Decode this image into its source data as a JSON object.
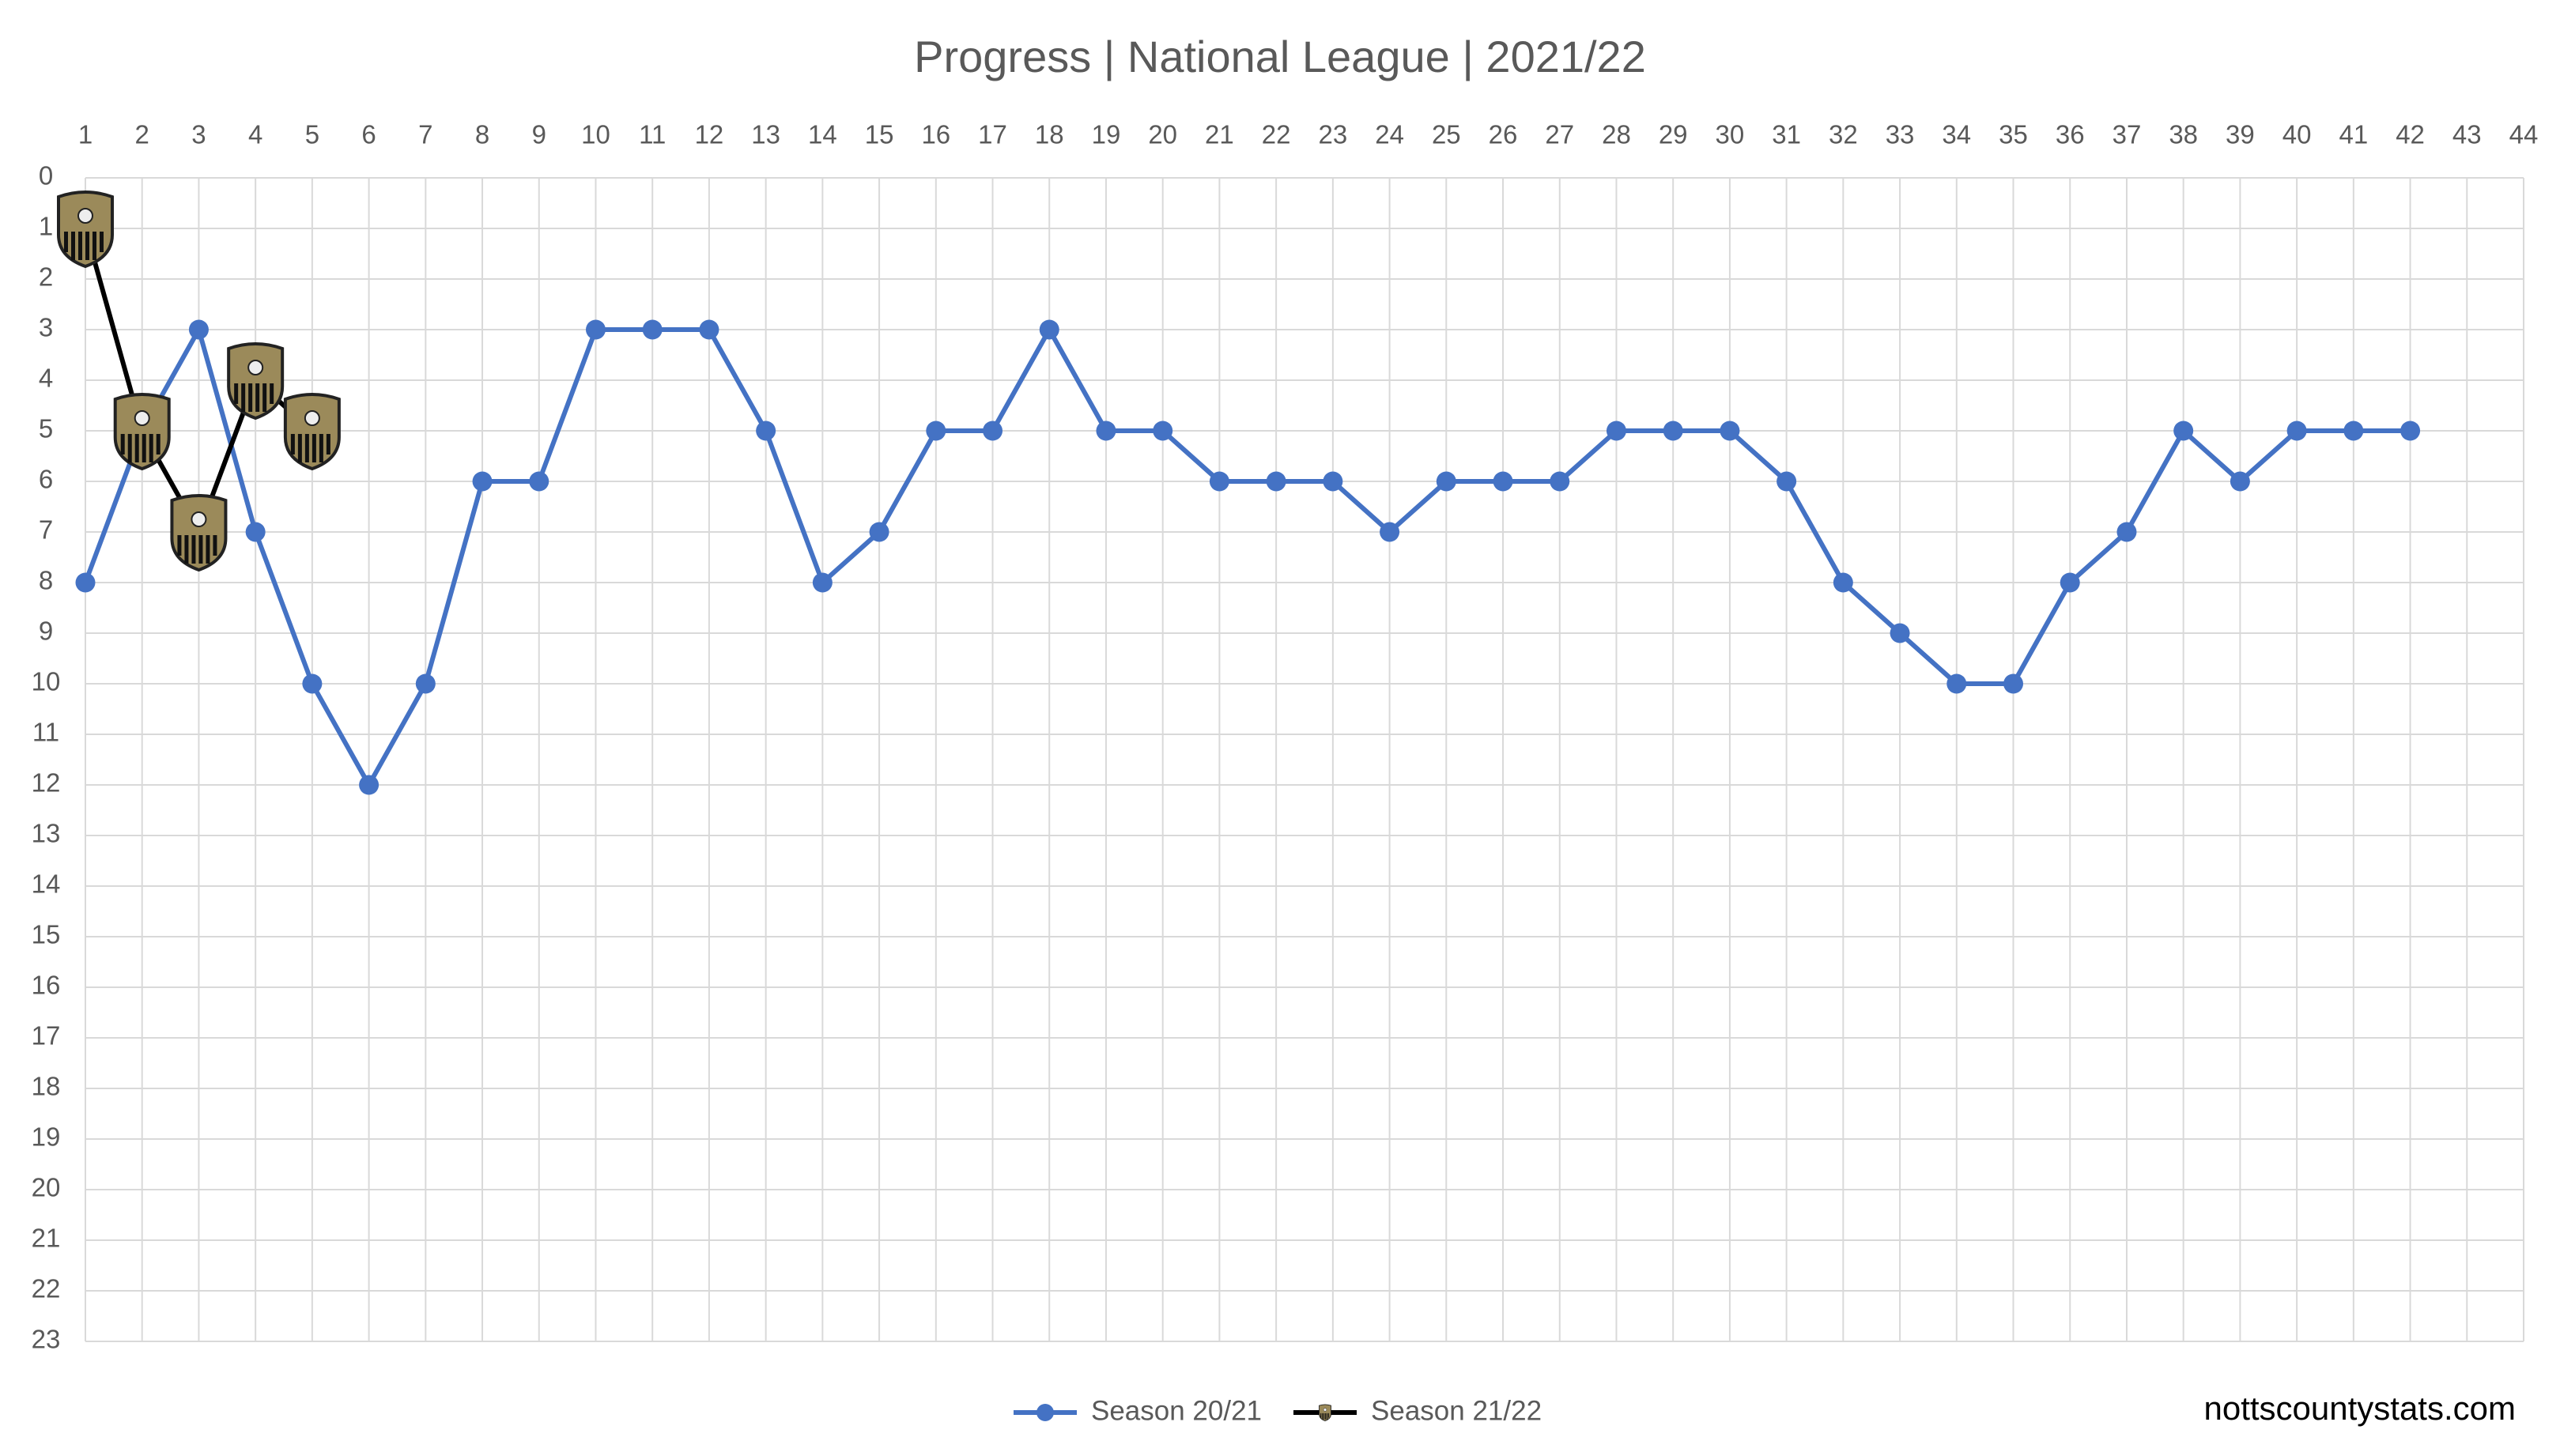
{
  "chart_data": {
    "type": "line",
    "title": "Progress | National League | 2021/22",
    "x": [
      1,
      2,
      3,
      4,
      5,
      6,
      7,
      8,
      9,
      10,
      11,
      12,
      13,
      14,
      15,
      16,
      17,
      18,
      19,
      20,
      21,
      22,
      23,
      24,
      25,
      26,
      27,
      28,
      29,
      30,
      31,
      32,
      33,
      34,
      35,
      36,
      37,
      38,
      39,
      40,
      41,
      42
    ],
    "series": [
      {
        "name": "Season 20/21",
        "color": "#4472c4",
        "marker": "circle",
        "values": [
          8,
          5,
          3,
          7,
          10,
          12,
          10,
          6,
          6,
          3,
          3,
          3,
          5,
          8,
          7,
          5,
          5,
          3,
          5,
          5,
          6,
          6,
          6,
          7,
          6,
          6,
          6,
          5,
          5,
          5,
          6,
          8,
          9,
          10,
          10,
          8,
          7,
          5,
          6,
          5,
          5,
          5
        ]
      },
      {
        "name": "Season 21/22",
        "color": "#000000",
        "marker": "badge",
        "values": [
          1,
          5,
          7,
          4,
          5,
          null,
          null,
          null,
          null,
          null,
          null,
          null,
          null,
          null,
          null,
          null,
          null,
          null,
          null,
          null,
          null,
          null,
          null,
          null,
          null,
          null,
          null,
          null,
          null,
          null,
          null,
          null,
          null,
          null,
          null,
          null,
          null,
          null,
          null,
          null,
          null,
          null
        ]
      }
    ],
    "xlim": [
      1,
      44
    ],
    "xticks": [
      1,
      2,
      3,
      4,
      5,
      6,
      7,
      8,
      9,
      10,
      11,
      12,
      13,
      14,
      15,
      16,
      17,
      18,
      19,
      20,
      21,
      22,
      23,
      24,
      25,
      26,
      27,
      28,
      29,
      30,
      31,
      32,
      33,
      34,
      35,
      36,
      37,
      38,
      39,
      40,
      41,
      42,
      43,
      44
    ],
    "ylim": [
      0,
      23
    ],
    "y_inverted": true,
    "yticks": [
      0,
      1,
      2,
      3,
      4,
      5,
      6,
      7,
      8,
      9,
      10,
      11,
      12,
      13,
      14,
      15,
      16,
      17,
      18,
      19,
      20,
      21,
      22,
      23
    ],
    "grid": true,
    "legend": "bottom",
    "credit": "nottscountystats.com"
  }
}
